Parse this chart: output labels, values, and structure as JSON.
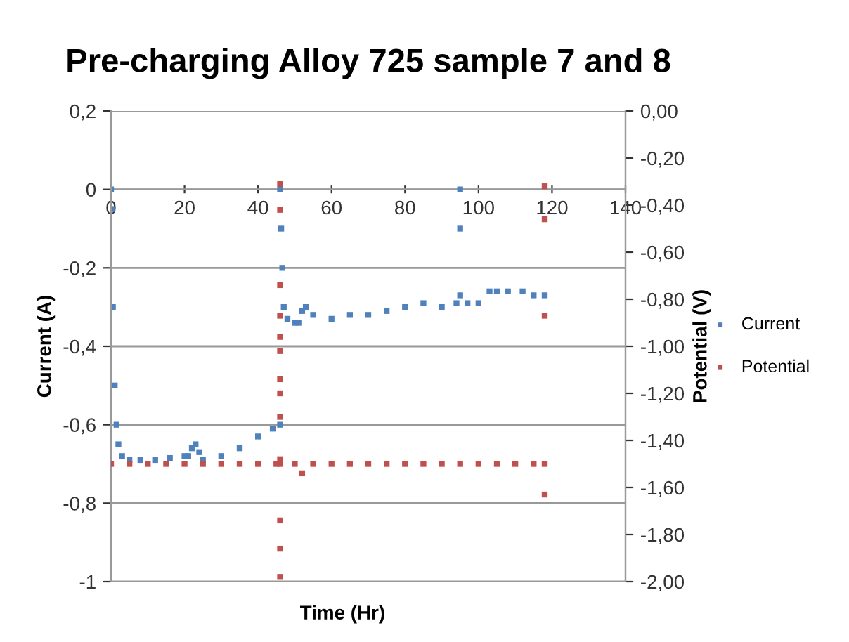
{
  "chart_data": {
    "type": "scatter",
    "title": "Pre-charging Alloy 725 sample 7 and 8",
    "xlabel": "Time (Hr)",
    "ylabel": "Current (A)",
    "y2label": "Potential (V)",
    "xlim": [
      0,
      140
    ],
    "xticks": [
      0,
      20,
      40,
      60,
      80,
      100,
      120,
      140
    ],
    "ylim": [
      -1,
      0.2
    ],
    "yticks": [
      {
        "value": -1,
        "label": "-1"
      },
      {
        "value": -0.8,
        "label": "-0,8"
      },
      {
        "value": -0.6,
        "label": "-0,6"
      },
      {
        "value": -0.4,
        "label": "-0,4"
      },
      {
        "value": -0.2,
        "label": "-0,2"
      },
      {
        "value": 0,
        "label": "0"
      },
      {
        "value": 0.2,
        "label": "0,2"
      }
    ],
    "y2lim": [
      -2,
      0
    ],
    "y2ticks": [
      {
        "value": -2,
        "label": "-2,00"
      },
      {
        "value": -1.8,
        "label": "-1,80"
      },
      {
        "value": -1.6,
        "label": "-1,60"
      },
      {
        "value": -1.4,
        "label": "-1,40"
      },
      {
        "value": -1.2,
        "label": "-1,20"
      },
      {
        "value": -1,
        "label": "-1,00"
      },
      {
        "value": -0.8,
        "label": "-0,80"
      },
      {
        "value": -0.6,
        "label": "-0,60"
      },
      {
        "value": -0.4,
        "label": "-0,40"
      },
      {
        "value": -0.2,
        "label": "-0,20"
      },
      {
        "value": 0,
        "label": "0,00"
      }
    ],
    "grid": "y",
    "legend": "right",
    "marker": "square",
    "series": [
      {
        "name": "Current",
        "color": "#4f81bd",
        "x": [
          0,
          0.2,
          0.5,
          1,
          1.5,
          2,
          3,
          5,
          8,
          12,
          16,
          20,
          21,
          22,
          23,
          24,
          25,
          30,
          35,
          40,
          44,
          46,
          46,
          46.3,
          46.6,
          47,
          48,
          50,
          51,
          52,
          53,
          55,
          60,
          65,
          70,
          75,
          80,
          85,
          90,
          94,
          95,
          95,
          95,
          97,
          100,
          103,
          105,
          108,
          112,
          115,
          118
        ],
        "values": [
          0,
          -0.05,
          -0.3,
          -0.5,
          -0.6,
          -0.65,
          -0.68,
          -0.69,
          -0.69,
          -0.69,
          -0.685,
          -0.68,
          -0.68,
          -0.66,
          -0.65,
          -0.67,
          -0.69,
          -0.68,
          -0.66,
          -0.63,
          -0.61,
          -0.6,
          0,
          -0.1,
          -0.2,
          -0.3,
          -0.33,
          -0.34,
          -0.34,
          -0.31,
          -0.3,
          -0.32,
          -0.33,
          -0.32,
          -0.32,
          -0.31,
          -0.3,
          -0.29,
          -0.3,
          -0.29,
          -0.27,
          0,
          -0.1,
          -0.29,
          -0.29,
          -0.26,
          -0.26,
          -0.26,
          -0.26,
          -0.27,
          -0.27
        ]
      },
      {
        "name": "Potential",
        "color": "#c0504d",
        "axis": "y2",
        "x": [
          0,
          5,
          10,
          15,
          20,
          25,
          30,
          35,
          40,
          45,
          46,
          46,
          46,
          46,
          46,
          46,
          46,
          46,
          46,
          46,
          46,
          46,
          46,
          46,
          50,
          52,
          55,
          60,
          65,
          70,
          75,
          80,
          85,
          90,
          95,
          100,
          105,
          110,
          115,
          118,
          118,
          118,
          118,
          118
        ],
        "values": [
          -1.5,
          -1.5,
          -1.5,
          -1.5,
          -1.5,
          -1.5,
          -1.5,
          -1.5,
          -1.5,
          -1.5,
          -0.31,
          -0.42,
          -0.74,
          -0.87,
          -0.96,
          -1.02,
          -1.14,
          -1.2,
          -1.3,
          -1.48,
          -1.5,
          -1.74,
          -1.86,
          -1.98,
          -1.5,
          -1.54,
          -1.5,
          -1.5,
          -1.5,
          -1.5,
          -1.5,
          -1.5,
          -1.5,
          -1.5,
          -1.5,
          -1.5,
          -1.5,
          -1.5,
          -1.5,
          -1.5,
          -0.32,
          -0.46,
          -0.87,
          -1.63
        ]
      }
    ]
  }
}
